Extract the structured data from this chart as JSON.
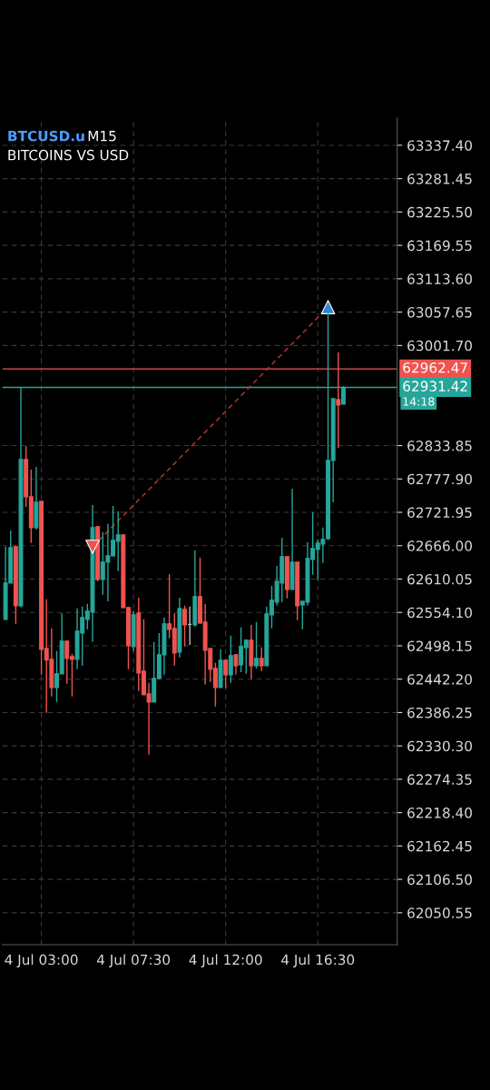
{
  "chart_data": {
    "type": "candlestick",
    "title": "BTCUSD.u",
    "subtitle": "BITCOINS VS USD",
    "annotations": [
      "M15",
      "14:18"
    ],
    "categories": [
      null,
      null,
      null,
      null,
      null,
      null,
      null,
      "4 Jul 03:00",
      null,
      null,
      null,
      null,
      null,
      null,
      null,
      null,
      null,
      null,
      null,
      null,
      null,
      null,
      null,
      null,
      null,
      "4 Jul 07:30",
      null,
      null,
      null,
      null,
      null,
      null,
      null,
      null,
      null,
      null,
      null,
      null,
      null,
      null,
      null,
      null,
      null,
      "4 Jul 12:00",
      null,
      null,
      null,
      null,
      null,
      null,
      null,
      null,
      null,
      null,
      null,
      null,
      null,
      null,
      null,
      null,
      null,
      "4 Jul 16:30",
      null,
      null,
      null,
      null,
      null
    ],
    "ohlc": [
      [
        62542.5,
        62664.3,
        62541.0,
        62603.4
      ],
      [
        62603.4,
        62691.7,
        62603.4,
        62662.8
      ],
      [
        62664.3,
        62665.8,
        62534.9,
        62565.3
      ],
      [
        62565.3,
        62930.8,
        62562.3,
        62810.5
      ],
      [
        62810.5,
        62833.3,
        62731.3,
        62748.0
      ],
      [
        62748.0,
        62793.7,
        62670.4,
        62696.3
      ],
      [
        62696.3,
        62798.3,
        62693.2,
        62738.9
      ],
      [
        62740.4,
        62740.4,
        62449.6,
        62492.2
      ],
      [
        62493.7,
        62576.0,
        62385.6,
        62474.0
      ],
      [
        62475.5,
        62527.3,
        62413.0,
        62428.3
      ],
      [
        62428.3,
        62489.2,
        62403.9,
        62451.1
      ],
      [
        62451.1,
        62553.1,
        62451.1,
        62505.9
      ],
      [
        62505.9,
        62505.9,
        62434.4,
        62477.0
      ],
      [
        62480.0,
        62484.6,
        62413.0,
        62475.5
      ],
      [
        62475.5,
        62560.8,
        62458.7,
        62522.7
      ],
      [
        62519.6,
        62563.8,
        62464.8,
        62545.5
      ],
      [
        62542.5,
        62568.4,
        62525.7,
        62556.2
      ],
      [
        62554.7,
        62734.3,
        62504.4,
        62696.3
      ],
      [
        62697.8,
        62699.3,
        62606.4,
        62609.5
      ],
      [
        62609.5,
        62688.7,
        62583.6,
        62638.4
      ],
      [
        62638.4,
        62702.4,
        62572.9,
        62649.1
      ],
      [
        62649.1,
        62732.8,
        62647.6,
        62675.0
      ],
      [
        62673.5,
        62723.7,
        62623.2,
        62684.1
      ],
      [
        62684.1,
        62684.1,
        62560.8,
        62562.3
      ],
      [
        62562.3,
        62562.3,
        62458.7,
        62498.3
      ],
      [
        62496.8,
        62556.2,
        62489.2,
        62550.1
      ],
      [
        62553.1,
        62579.0,
        62422.2,
        62452.6
      ],
      [
        62455.7,
        62542.5,
        62416.1,
        62416.1
      ],
      [
        62417.6,
        62435.9,
        62315.6,
        62403.9
      ],
      [
        62403.9,
        62504.4,
        62403.9,
        62443.5
      ],
      [
        62443.5,
        62519.6,
        62442.0,
        62483.1
      ],
      [
        62483.1,
        62545.5,
        62449.6,
        62534.9
      ],
      [
        62534.9,
        62618.6,
        62510.5,
        62525.7
      ],
      [
        62527.3,
        62553.1,
        62464.8,
        62486.1
      ],
      [
        62487.7,
        62579.0,
        62478.5,
        62560.8
      ],
      [
        62559.2,
        62565.3,
        62496.8,
        62533.3
      ],
      [
        62534.0,
        62563.8,
        62499.8,
        62534.0
      ],
      [
        62533.3,
        62658.2,
        62530.3,
        62580.6
      ],
      [
        62580.6,
        62646.0,
        62534.9,
        62536.4
      ],
      [
        62537.9,
        62568.4,
        62432.8,
        62490.7
      ],
      [
        62493.7,
        62493.7,
        62437.4,
        62458.7
      ],
      [
        62460.2,
        62469.4,
        62396.3,
        62428.3
      ],
      [
        62428.3,
        62492.2,
        62428.3,
        62474.0
      ],
      [
        62474.0,
        62474.0,
        62426.7,
        62449.6
      ],
      [
        62449.6,
        62515.1,
        62435.9,
        62481.6
      ],
      [
        62483.1,
        62483.1,
        62449.6,
        62464.8
      ],
      [
        62466.3,
        62528.8,
        62454.1,
        62496.8
      ],
      [
        62495.3,
        62509.0,
        62451.1,
        62507.5
      ],
      [
        62507.5,
        62533.3,
        62442.0,
        62464.8
      ],
      [
        62464.8,
        62537.9,
        62460.2,
        62477.0
      ],
      [
        62477.0,
        62495.3,
        62455.7,
        62464.8
      ],
      [
        62464.8,
        62563.8,
        62464.8,
        62551.6
      ],
      [
        62550.1,
        62598.8,
        62527.3,
        62574.5
      ],
      [
        62571.4,
        62632.3,
        62565.3,
        62606.4
      ],
      [
        62603.4,
        62679.5,
        62571.4,
        62647.6
      ],
      [
        62647.6,
        62647.6,
        62577.5,
        62592.7
      ],
      [
        62592.7,
        62761.7,
        62592.7,
        62638.4
      ],
      [
        62638.4,
        62638.4,
        62541.0,
        62565.3
      ],
      [
        62566.8,
        62572.9,
        62525.7,
        62572.9
      ],
      [
        62571.4,
        62671.9,
        62565.3,
        62644.5
      ],
      [
        62643.0,
        62722.2,
        62617.1,
        62661.3
      ],
      [
        62659.7,
        62676.5,
        62608.0,
        62670.4
      ],
      [
        62668.9,
        62696.3,
        62636.9,
        62676.5
      ],
      [
        62678.0,
        63070.9,
        62675.0,
        62809.0
      ],
      [
        62809.0,
        62912.5,
        62738.9,
        62912.5
      ],
      [
        62911.0,
        62990.2,
        62830.3,
        62901.9
      ],
      [
        62903.4,
        62933.8,
        62903.4,
        62931.4
      ]
    ],
    "colors": [
      "#26a69a",
      "#26a69a",
      "#ef5350",
      "#26a69a",
      "#ef5350",
      "#ef5350",
      "#26a69a",
      "#ef5350",
      "#ef5350",
      "#ef5350",
      "#26a69a",
      "#26a69a",
      "#ef5350",
      "#ef5350",
      "#26a69a",
      "#26a69a",
      "#26a69a",
      "#26a69a",
      "#ef5350",
      "#26a69a",
      "#26a69a",
      "#26a69a",
      "#26a69a",
      "#ef5350",
      "#ef5350",
      "#26a69a",
      "#ef5350",
      "#ef5350",
      "#ef5350",
      "#26a69a",
      "#26a69a",
      "#26a69a",
      "#ef5350",
      "#ef5350",
      "#26a69a",
      "#ef5350",
      "#bdbdbd",
      "#26a69a",
      "#ef5350",
      "#ef5350",
      "#ef5350",
      "#ef5350",
      "#26a69a",
      "#ef5350",
      "#26a69a",
      "#ef5350",
      "#26a69a",
      "#26a69a",
      "#ef5350",
      "#26a69a",
      "#ef5350",
      "#26a69a",
      "#26a69a",
      "#26a69a",
      "#26a69a",
      "#ef5350",
      "#26a69a",
      "#ef5350",
      "#26a69a",
      "#26a69a",
      "#26a69a",
      "#26a69a",
      "#26a69a",
      "#26a69a",
      "#26a69a",
      "#ef5350",
      "#26a69a"
    ],
    "series": [
      {
        "type": "line",
        "values": [
          null,
          null,
          null,
          null,
          null,
          null,
          null,
          null,
          null,
          null,
          null,
          null,
          null,
          null,
          null,
          null,
          null,
          62664,
          null,
          null,
          null,
          null,
          null,
          null,
          null,
          null,
          null,
          null,
          null,
          null,
          null,
          null,
          null,
          null,
          null,
          null,
          null,
          null,
          null,
          null,
          null,
          null,
          null,
          null,
          null,
          null,
          null,
          null,
          null,
          null,
          null,
          null,
          null,
          null,
          null,
          null,
          null,
          null,
          null,
          null,
          null,
          null,
          null,
          63066,
          null,
          null,
          null
        ],
        "color": "#c0392b",
        "line_style": "dashed"
      },
      {
        "type": "scatter",
        "values": [
          null,
          null,
          null,
          null,
          null,
          null,
          null,
          null,
          null,
          null,
          null,
          null,
          null,
          null,
          null,
          null,
          null,
          62664,
          null,
          null,
          null,
          null,
          null,
          null,
          null,
          null,
          null,
          null,
          null,
          null,
          null,
          null,
          null,
          null,
          null,
          null,
          null,
          null,
          null,
          null,
          null,
          null,
          null,
          null,
          null,
          null,
          null,
          null,
          null,
          null,
          null,
          null,
          null,
          null,
          null,
          null,
          null,
          null,
          null,
          null,
          null,
          null,
          null,
          null,
          null,
          null,
          null
        ],
        "color": "#ef5350",
        "marker": "triangle_down"
      },
      {
        "type": "scatter",
        "values": [
          null,
          null,
          null,
          null,
          null,
          null,
          null,
          null,
          null,
          null,
          null,
          null,
          null,
          null,
          null,
          null,
          null,
          null,
          null,
          null,
          null,
          null,
          null,
          null,
          null,
          null,
          null,
          null,
          null,
          null,
          null,
          null,
          null,
          null,
          null,
          null,
          null,
          null,
          null,
          null,
          null,
          null,
          null,
          null,
          null,
          null,
          null,
          null,
          null,
          null,
          null,
          null,
          null,
          null,
          null,
          null,
          null,
          null,
          null,
          null,
          null,
          null,
          null,
          63066,
          null,
          null,
          null
        ],
        "color": "#2f7de1",
        "marker": "triangle"
      }
    ],
    "ref_lines": [
      {
        "axis": "y",
        "value": 62962.47,
        "label": "62962.47",
        "color": "#ef5350"
      },
      {
        "axis": "y",
        "value": 62931.42,
        "label": "62931.42",
        "color": "#26a69a"
      }
    ],
    "ylim": [
      61997,
      63383
    ],
    "yticks": [
      62050.55,
      {
        "value": 62106.5,
        "label": "62106.50"
      },
      62162.45,
      {
        "value": 62218.4,
        "label": "62218.40"
      },
      62274.35,
      {
        "value": 62330.3,
        "label": "62330.30"
      },
      62386.25,
      {
        "value": 62442.2,
        "label": "62442.20"
      },
      62498.15,
      {
        "value": 62554.1,
        "label": "62554.10"
      },
      62610.05,
      {
        "value": 62666.0,
        "label": "62666.00"
      },
      62721.95,
      {
        "value": 62777.9,
        "label": "62777.90"
      },
      62833.85,
      {
        "value": 63001.7,
        "label": "63001.70"
      },
      63057.65,
      {
        "value": 63113.6,
        "label": "63113.60"
      },
      63169.55,
      {
        "value": 63225.5,
        "label": "63225.50"
      },
      63281.45,
      {
        "value": 63337.4,
        "label": "63337.40"
      }
    ],
    "grid": true
  }
}
